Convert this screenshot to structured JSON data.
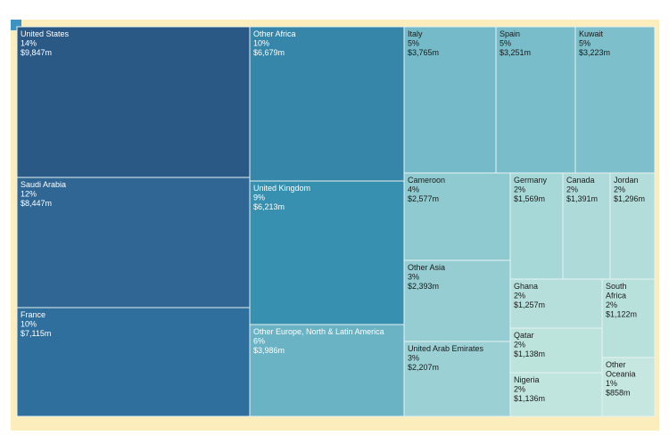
{
  "chart_data": {
    "type": "treemap",
    "title": "",
    "value_unit": "$m",
    "items": [
      {
        "name": "United States",
        "pct": "14%",
        "value": "$9,847m",
        "color": "#2b5986",
        "text_color": "#ffffff"
      },
      {
        "name": "Saudi Arabia",
        "pct": "12%",
        "value": "$8,447m",
        "color": "#2f6694",
        "text_color": "#ffffff"
      },
      {
        "name": "France",
        "pct": "10%",
        "value": "$7,115m",
        "color": "#2f6f9d",
        "text_color": "#ffffff"
      },
      {
        "name": "Other Africa",
        "pct": "10%",
        "value": "$6,679m",
        "color": "#3586a8",
        "text_color": "#ffffff"
      },
      {
        "name": "United Kingdom",
        "pct": "9%",
        "value": "$6,213m",
        "color": "#3890b0",
        "text_color": "#ffffff"
      },
      {
        "name": "Other Europe, North & Latin America",
        "pct": "6%",
        "value": "$3,986m",
        "color": "#6ab3c4",
        "text_color": "#ffffff"
      },
      {
        "name": "Italy",
        "pct": "5%",
        "value": "$3,765m",
        "color": "#74bac8",
        "text_color": "#1a1a1a"
      },
      {
        "name": "Spain",
        "pct": "5%",
        "value": "$3,251m",
        "color": "#79bdca",
        "text_color": "#1a1a1a"
      },
      {
        "name": "Kuwait",
        "pct": "5%",
        "value": "$3,223m",
        "color": "#7dbfcb",
        "text_color": "#1a1a1a"
      },
      {
        "name": "Cameroon",
        "pct": "4%",
        "value": "$2,577m",
        "color": "#8fcad0",
        "text_color": "#1a1a1a"
      },
      {
        "name": "Other Asia",
        "pct": "3%",
        "value": "$2,393m",
        "color": "#95cdd2",
        "text_color": "#1a1a1a"
      },
      {
        "name": "United Arab Emirates",
        "pct": "3%",
        "value": "$2,207m",
        "color": "#9bd1d5",
        "text_color": "#1a1a1a"
      },
      {
        "name": "Germany",
        "pct": "2%",
        "value": "$1,569m",
        "color": "#a7d8d8",
        "text_color": "#1a1a1a"
      },
      {
        "name": "Canada",
        "pct": "2%",
        "value": "$1,391m",
        "color": "#aedbda",
        "text_color": "#1a1a1a"
      },
      {
        "name": "Jordan",
        "pct": "2%",
        "value": "$1,296m",
        "color": "#b2ddda",
        "text_color": "#1a1a1a"
      },
      {
        "name": "Ghana",
        "pct": "2%",
        "value": "$1,257m",
        "color": "#b6dfdb",
        "text_color": "#1a1a1a"
      },
      {
        "name": "South Africa",
        "pct": "2%",
        "value": "$1,122m",
        "color": "#b9e1dc",
        "text_color": "#1a1a1a"
      },
      {
        "name": "Qatar",
        "pct": "2%",
        "value": "$1,138m",
        "color": "#bde3dd",
        "text_color": "#1a1a1a"
      },
      {
        "name": "Nigeria",
        "pct": "2%",
        "value": "$1,136m",
        "color": "#c0e4de",
        "text_color": "#1a1a1a"
      },
      {
        "name": "Other Oceania",
        "pct": "1%",
        "value": "$858m",
        "color": "#c6e7e0",
        "text_color": "#1a1a1a"
      }
    ]
  }
}
